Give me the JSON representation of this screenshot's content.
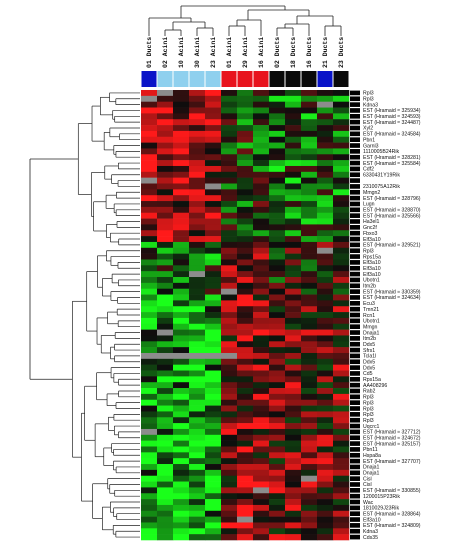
{
  "figure": {
    "type": "clustered-heatmap",
    "columns": [
      {
        "label": "01 Ducts",
        "group": "Ducts",
        "group_color": "#0a14c8"
      },
      {
        "label": "02 Acini",
        "group": "Acini",
        "group_color": "#8fd0ee"
      },
      {
        "label": "10 Acini",
        "group": "Acini",
        "group_color": "#8fd0ee"
      },
      {
        "label": "30 Acini",
        "group": "Acini",
        "group_color": "#8fd0ee"
      },
      {
        "label": "23 Acini",
        "group": "Acini",
        "group_color": "#8fd0ee"
      },
      {
        "label": "01 Acini",
        "group": "Acini-red",
        "group_color": "#e8141e"
      },
      {
        "label": "29 Acini",
        "group": "Acini-red",
        "group_color": "#e8141e"
      },
      {
        "label": "16 Acini",
        "group": "Acini-red",
        "group_color": "#e8141e"
      },
      {
        "label": "02 Ducts",
        "group": "Ducts-black",
        "group_color": "#0a0a0a"
      },
      {
        "label": "18 Ducts",
        "group": "Ducts-black",
        "group_color": "#0a0a0a"
      },
      {
        "label": "16 Ducts",
        "group": "Ducts-black",
        "group_color": "#0a0a0a"
      },
      {
        "label": "21 Ducts",
        "group": "Ducts",
        "group_color": "#0a14c8"
      },
      {
        "label": "23 Ducts",
        "group": "Ducts-black",
        "group_color": "#0a0a0a"
      }
    ],
    "rows": [
      "Rpl3",
      "Rpl3",
      "Kdna3",
      "EST (Hramaid ≈ 325934)",
      "EST (Hramaid ≈ 324593)",
      "EST (Hramaid ≈ 324487)",
      "Xyl2",
      "EST (Hramaid ≈ 324584)",
      "Pbn1",
      "Garnl3",
      "1110005B24Rik",
      "EST (Hramaid ≈ 328281)",
      "EST (Hramaid ≈ 325584)",
      "Cdf2",
      "6330431Y19Rik",
      "",
      "2310075A12Rik",
      "Mmgn2",
      "EST (Hramaid ≈ 328796)",
      "Lugn",
      "EST (Hramaid ≈ 328870)",
      "EST (Hramaid ≈ 325566)",
      "Ha3el1",
      "Gnc2f",
      "Fbxo3",
      "Elf3a10",
      "EST (Hramaid ≈ 329521)",
      "Rpl3",
      "Rps15a",
      "Elf3a10",
      "Elf3a10",
      "Elf3a10",
      "Ubotn1",
      "Itm2b",
      "EST (Hramaid ≈ 330359)",
      "EST (Hramaid ≈ 324634)",
      "Ecu3",
      "Tmn21",
      "Rcn1",
      "Ubotn1",
      "Mmgn",
      "Dnaja1",
      "Itm2b",
      "Ddx5",
      "Sfrs1",
      "Tcla1l",
      "Ddx5",
      "Ddx5",
      "Cd5",
      "Rps15a",
      "AA408296",
      "Rab2",
      "Rpl3",
      "Rpl3",
      "Rpl3",
      "Rpl3",
      "Rpl3",
      "Uqcrc1",
      "EST (Hramaid ≈ 327712)",
      "EST (Hramaid ≈ 324672)",
      "EST (Hramaid ≈ 325157)",
      "Pbn11",
      "Hspa8a",
      "EST (Hramaid ≈ 327707)",
      "Dnaja1",
      "Dnaja1",
      "Cisl",
      "Cisl",
      "EST (Hramaid ≈ 330855)",
      "1200015P23Rik",
      "Wac",
      "1810029J23Rik",
      "EST (Hramaid ≈ 328864)",
      "Elf3a10",
      "EST (Hramaid ≈ 324809)",
      "Kdna3",
      "Cds35"
    ],
    "colors": {
      "high": "#ff1a1a",
      "mid": "#0d0d0d",
      "low": "#1aff1a",
      "missing": "#8c8c8c",
      "row_bar": "#000000"
    },
    "notes": ""
  }
}
